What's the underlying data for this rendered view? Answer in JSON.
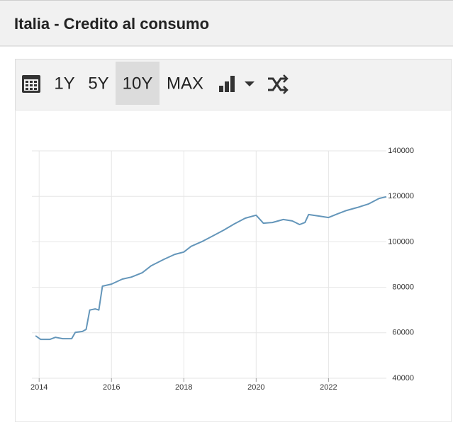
{
  "header": {
    "title": "Italia - Credito al consumo"
  },
  "toolbar": {
    "ranges": [
      "1Y",
      "5Y",
      "10Y",
      "MAX"
    ],
    "selected": 2
  },
  "chart_data": {
    "type": "line",
    "x": [
      2013.9,
      2014.04,
      2014.3,
      2014.45,
      2014.65,
      2014.9,
      2015.0,
      2015.2,
      2015.3,
      2015.4,
      2015.55,
      2015.65,
      2015.75,
      2016.0,
      2016.3,
      2016.55,
      2016.85,
      2017.1,
      2017.45,
      2017.75,
      2018.0,
      2018.2,
      2018.5,
      2018.8,
      2019.1,
      2019.4,
      2019.7,
      2020.0,
      2020.2,
      2020.45,
      2020.75,
      2021.0,
      2021.2,
      2021.35,
      2021.45,
      2021.75,
      2022.0,
      2022.25,
      2022.5,
      2022.8,
      2023.1,
      2023.4,
      2023.6
    ],
    "series": [
      {
        "color": "#6496ba",
        "values": [
          58700,
          57100,
          57100,
          58000,
          57400,
          57400,
          60200,
          60600,
          61500,
          70000,
          70500,
          70000,
          80500,
          81400,
          83600,
          84500,
          86400,
          89500,
          92300,
          94500,
          95500,
          98000,
          100100,
          102600,
          105100,
          107900,
          110400,
          111700,
          108200,
          108500,
          109800,
          109200,
          107600,
          108500,
          112000,
          111300,
          110700,
          112300,
          113800,
          115100,
          116600,
          119100,
          119800
        ]
      }
    ],
    "xlim": [
      2013.8,
      2023.6
    ],
    "xticks": [
      2014,
      2016,
      2018,
      2020,
      2022
    ],
    "ylim": [
      40000,
      140000
    ],
    "yticks": [
      40000,
      60000,
      80000,
      100000,
      120000,
      140000
    ],
    "grid": true
  }
}
